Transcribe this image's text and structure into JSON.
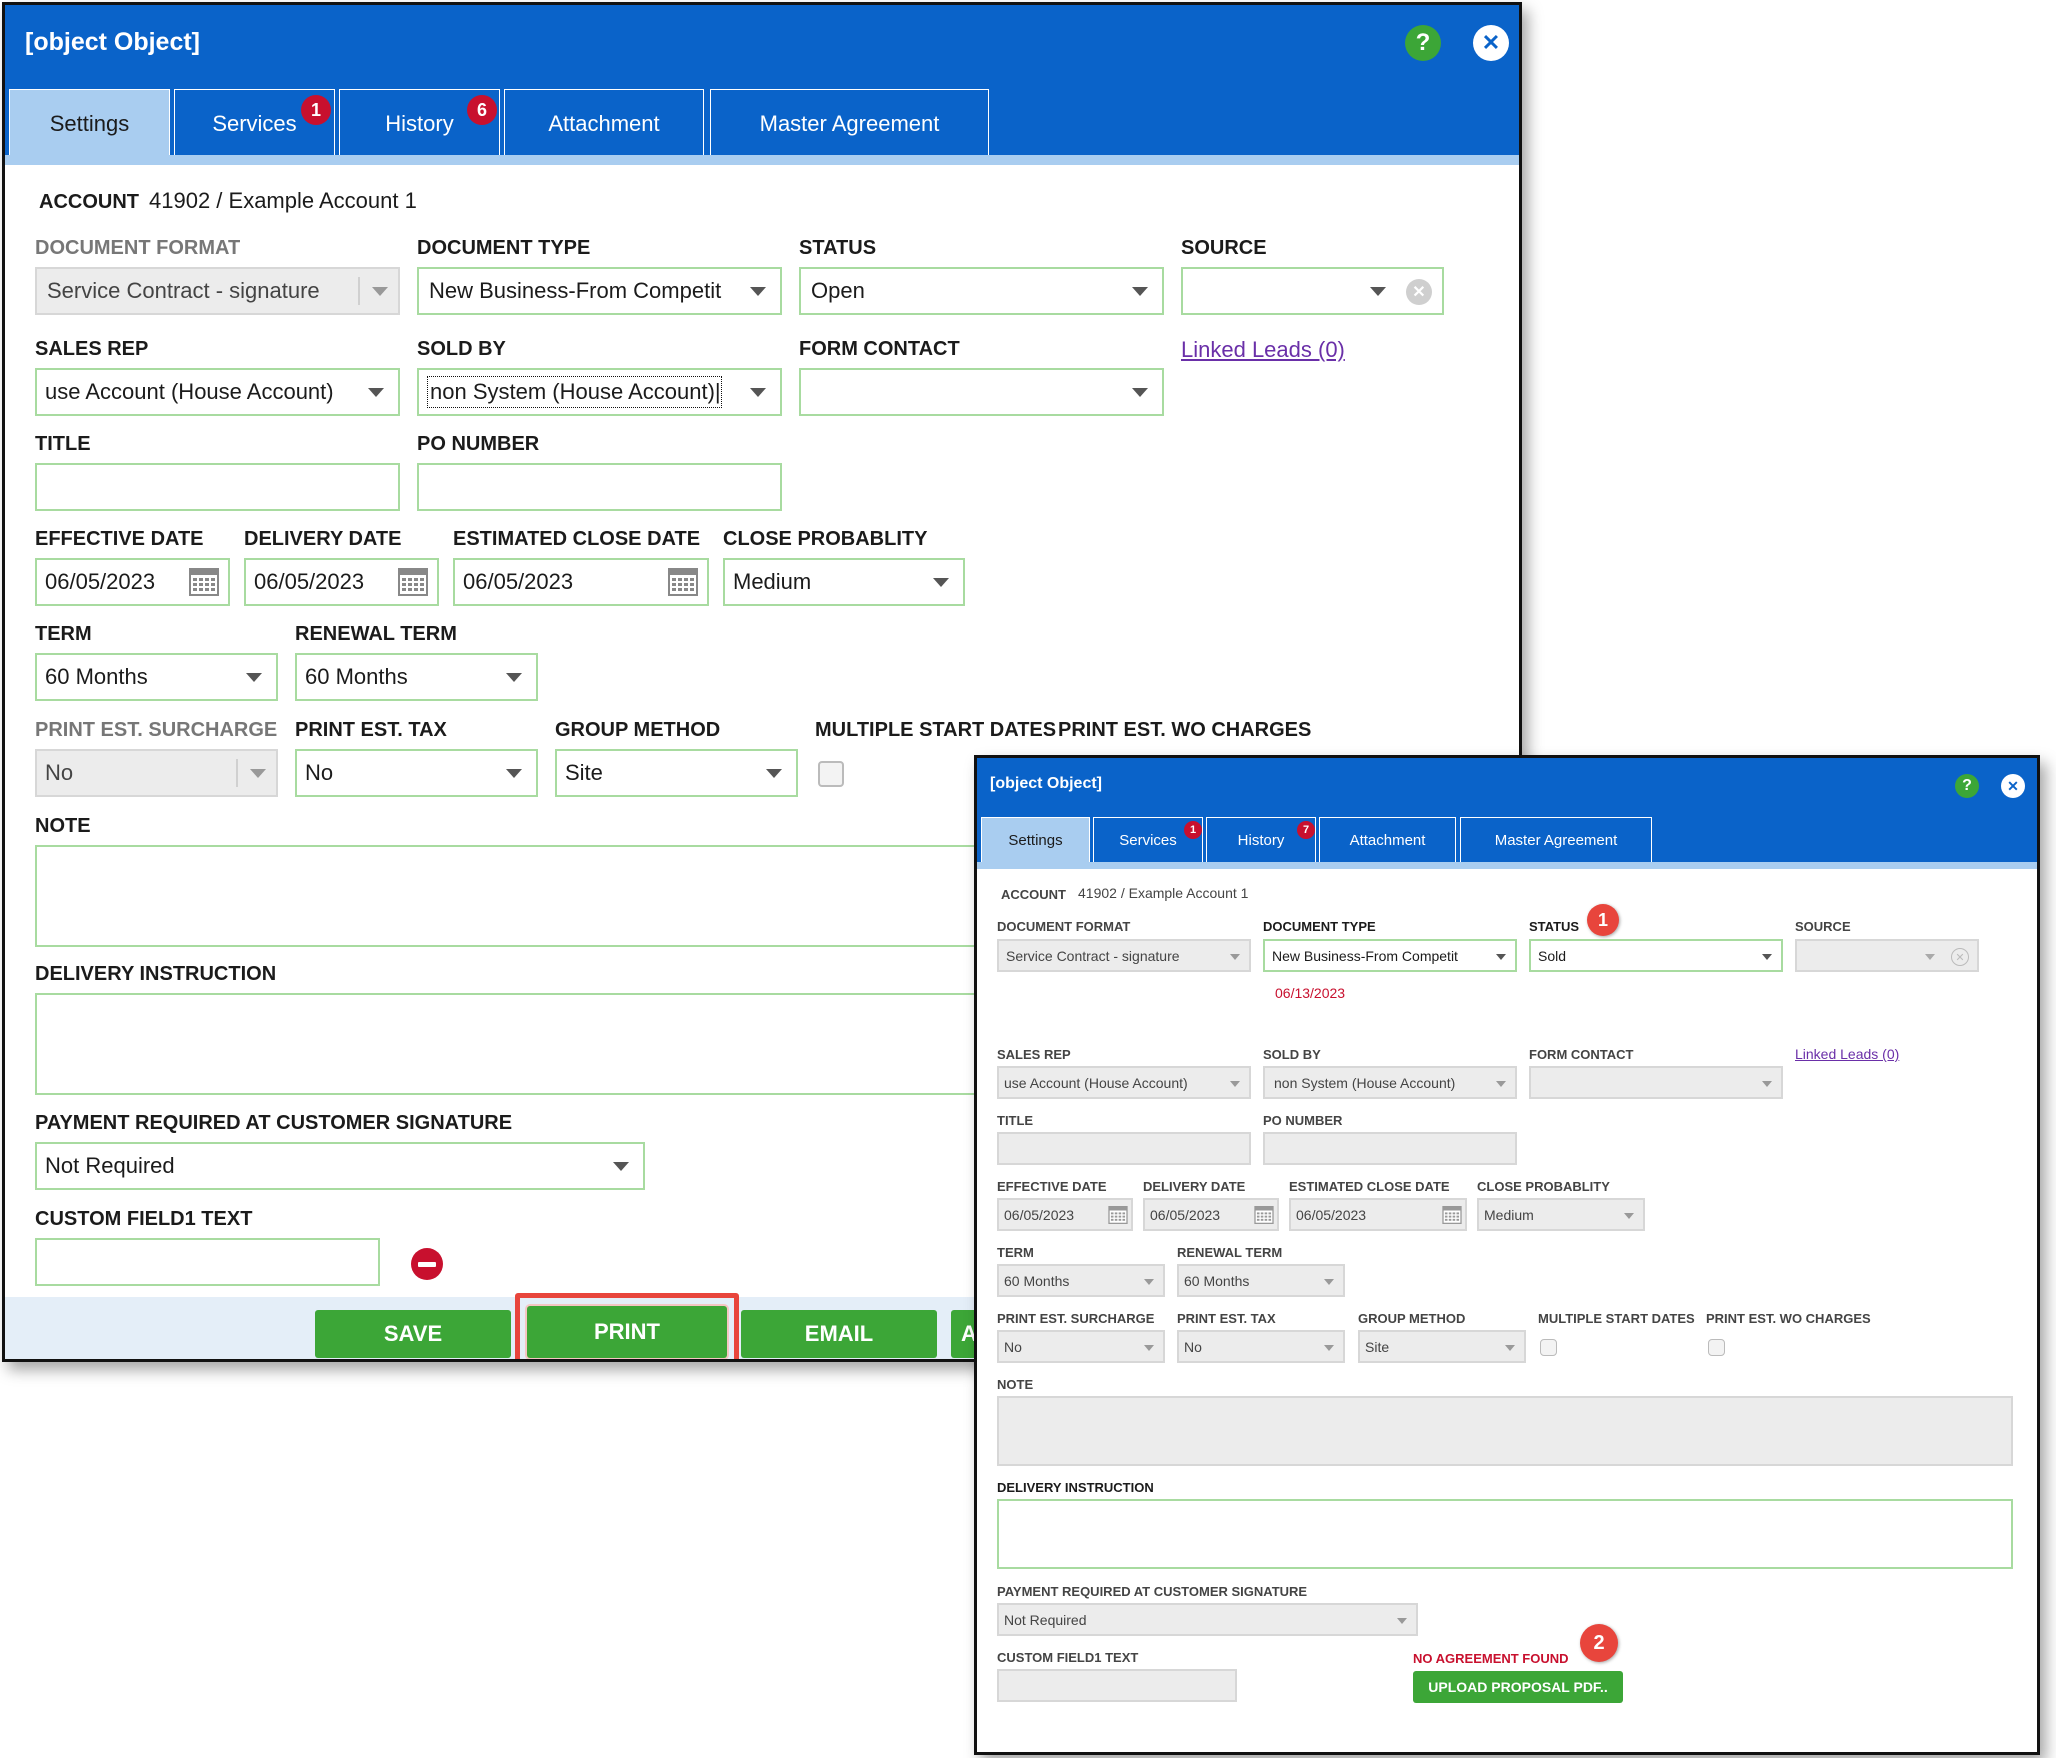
{
  "window_main": {
    "title": {
      "label": "TITLE",
      "value": ""
    },
    "tabs": [
      {
        "label": "Settings"
      },
      {
        "label": "Services",
        "badge": "1"
      },
      {
        "label": "History",
        "badge": "6"
      },
      {
        "label": "Attachment"
      },
      {
        "label": "Master Agreement"
      }
    ],
    "account_label": "ACCOUNT",
    "account_value": "41902 / Example Account 1",
    "document_format": {
      "label": "DOCUMENT FORMAT",
      "value": "Service Contract - signature"
    },
    "document_type": {
      "label": "DOCUMENT TYPE",
      "value": "New Business-From Competit"
    },
    "status": {
      "label": "STATUS",
      "value": "Open"
    },
    "source": {
      "label": "SOURCE",
      "value": ""
    },
    "sales_rep": {
      "label": "SALES REP",
      "value": "use Account (House Account)"
    },
    "sold_by": {
      "label": "SOLD BY",
      "value": "non System (House Account)|"
    },
    "form_contact": {
      "label": "FORM CONTACT",
      "value": ""
    },
    "linked_leads": "Linked Leads (0)",
    "po_number": {
      "label": "PO NUMBER",
      "value": ""
    },
    "effective_date": {
      "label": "EFFECTIVE DATE",
      "value": "06/05/2023"
    },
    "delivery_date": {
      "label": "DELIVERY DATE",
      "value": "06/05/2023"
    },
    "estimated_close_date": {
      "label": "ESTIMATED CLOSE DATE",
      "value": "06/05/2023"
    },
    "close_probability": {
      "label": "CLOSE PROBABLITY",
      "value": "Medium"
    },
    "term": {
      "label": "TERM",
      "value": "60 Months"
    },
    "renewal_term": {
      "label": "RENEWAL TERM",
      "value": "60 Months"
    },
    "print_est_surcharge": {
      "label": "PRINT EST. SURCHARGE",
      "value": "No"
    },
    "print_est_tax": {
      "label": "PRINT EST. TAX",
      "value": "No"
    },
    "group_method": {
      "label": "GROUP METHOD",
      "value": "Site"
    },
    "multiple_start_dates": {
      "label": "MULTIPLE START DATES"
    },
    "print_est_wo_charges": {
      "label": "PRINT EST. WO CHARGES"
    },
    "note": {
      "label": "NOTE"
    },
    "delivery_instruction": {
      "label": "DELIVERY INSTRUCTION"
    },
    "payment_required": {
      "label": "PAYMENT REQUIRED AT CUSTOMER SIGNATURE",
      "value": "Not Required"
    },
    "custom_field1": {
      "label": "CUSTOM FIELD1 TEXT",
      "value": ""
    },
    "buttons": {
      "save": "SAVE",
      "print": "PRINT",
      "email": "EMAIL",
      "partial": "A"
    }
  },
  "window_inset": {
    "title": {
      "label": "TITLE",
      "value": ""
    },
    "tabs": [
      {
        "label": "Settings"
      },
      {
        "label": "Services",
        "badge": "1"
      },
      {
        "label": "History",
        "badge": "7"
      },
      {
        "label": "Attachment"
      },
      {
        "label": "Master Agreement"
      }
    ],
    "account_label": "ACCOUNT",
    "account_value": "41902 / Example Account 1",
    "document_format": {
      "label": "DOCUMENT FORMAT",
      "value": "Service Contract - signature"
    },
    "document_type": {
      "label": "DOCUMENT TYPE",
      "value": "New Business-From Competit"
    },
    "status": {
      "label": "STATUS",
      "value": "Sold"
    },
    "status_date": "06/13/2023",
    "source": {
      "label": "SOURCE",
      "value": ""
    },
    "sales_rep": {
      "label": "SALES REP",
      "value": "use Account (House Account)"
    },
    "sold_by": {
      "label": "SOLD BY",
      "value": "non System (House Account)"
    },
    "form_contact": {
      "label": "FORM CONTACT",
      "value": ""
    },
    "linked_leads": "Linked Leads (0)",
    "po_number": {
      "label": "PO NUMBER",
      "value": ""
    },
    "effective_date": {
      "label": "EFFECTIVE DATE",
      "value": "06/05/2023"
    },
    "delivery_date": {
      "label": "DELIVERY DATE",
      "value": "06/05/2023"
    },
    "estimated_close_date": {
      "label": "ESTIMATED CLOSE DATE",
      "value": "06/05/2023"
    },
    "close_probability": {
      "label": "CLOSE PROBABLITY",
      "value": "Medium"
    },
    "term": {
      "label": "TERM",
      "value": "60 Months"
    },
    "renewal_term": {
      "label": "RENEWAL TERM",
      "value": "60 Months"
    },
    "print_est_surcharge": {
      "label": "PRINT EST. SURCHARGE",
      "value": "No"
    },
    "print_est_tax": {
      "label": "PRINT EST. TAX",
      "value": "No"
    },
    "group_method": {
      "label": "GROUP METHOD",
      "value": "Site"
    },
    "multiple_start_dates": {
      "label": "MULTIPLE START DATES"
    },
    "print_est_wo_charges": {
      "label": "PRINT EST. WO CHARGES"
    },
    "note": {
      "label": "NOTE"
    },
    "delivery_instruction": {
      "label": "DELIVERY INSTRUCTION"
    },
    "payment_required": {
      "label": "PAYMENT REQUIRED AT CUSTOMER SIGNATURE",
      "value": "Not Required"
    },
    "custom_field1": {
      "label": "CUSTOM FIELD1 TEXT",
      "value": ""
    },
    "no_agreement": "NO AGREEMENT FOUND",
    "upload_button": "UPLOAD PROPOSAL PDF..",
    "callouts": [
      "1",
      "2"
    ]
  },
  "icons": {
    "help": "?",
    "close": "✕",
    "remove": "—"
  },
  "colors": {
    "titlebar": "#0a63c9",
    "active_tab": "#a9cdf0",
    "button_green": "#3ca637",
    "badge_red": "#c8102e",
    "callout_red": "#e8453c",
    "field_border": "#a8dba0",
    "link_purple": "#6a2fa8",
    "highlight_box": "#e8453c"
  }
}
